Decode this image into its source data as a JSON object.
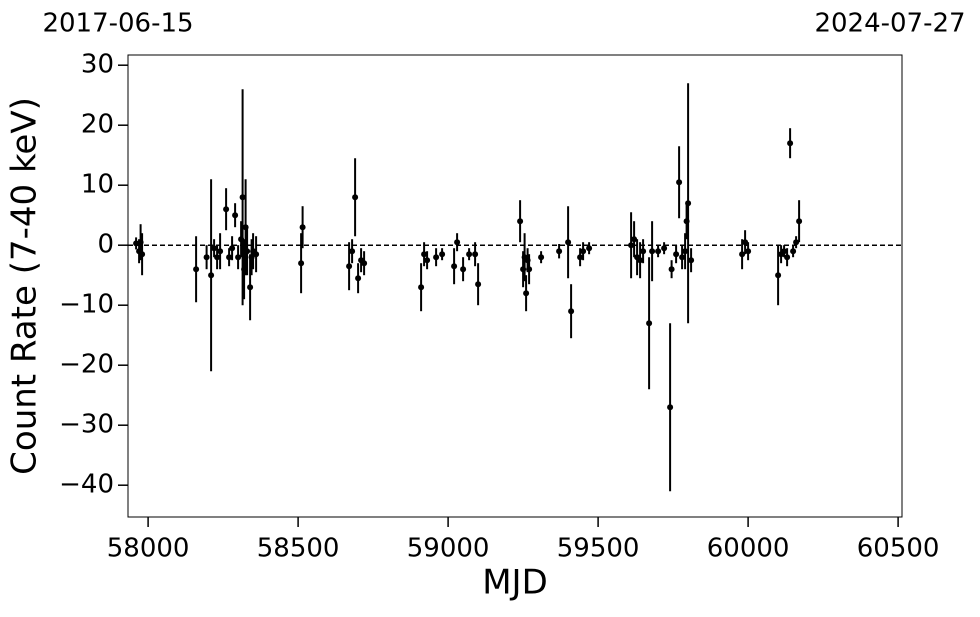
{
  "chart_data": {
    "type": "errorbar",
    "top_labels": [
      "2017-06-15",
      "2024-07-27"
    ],
    "xlabel": "MJD",
    "ylabel": "Count Rate (7-40 keV)",
    "color": "#000000",
    "hline": 0,
    "xlim": [
      57933,
      60513
    ],
    "ylim": [
      -45.3,
      31.7
    ],
    "xticks": [
      58000,
      58500,
      59000,
      59500,
      60000,
      60500
    ],
    "yticks": [
      30,
      20,
      10,
      0,
      {
        "value": -10,
        "label": "−10"
      },
      {
        "value": -20,
        "label": "−20"
      },
      {
        "value": -30,
        "label": "−30"
      },
      {
        "value": -40,
        "label": "−40"
      }
    ],
    "x": [
      57960,
      57970,
      57975,
      57980,
      58160,
      58195,
      58210,
      58220,
      58230,
      58240,
      58260,
      58270,
      58280,
      58290,
      58300,
      58310,
      58315,
      58320,
      58325,
      58330,
      58340,
      58345,
      58350,
      58360,
      58510,
      58515,
      58670,
      58680,
      58690,
      58700,
      58710,
      58720,
      58910,
      58920,
      58930,
      58960,
      58980,
      59020,
      59030,
      59050,
      59070,
      59090,
      59100,
      59240,
      59250,
      59255,
      59260,
      59265,
      59270,
      59310,
      59370,
      59400,
      59410,
      59440,
      59450,
      59470,
      59610,
      59620,
      59630,
      59640,
      59650,
      59670,
      59680,
      59700,
      59720,
      59740,
      59745,
      59760,
      59770,
      59780,
      59790,
      59795,
      59800,
      59810,
      59980,
      59990,
      60000,
      60100,
      60110,
      60120,
      60130,
      60140,
      60150,
      60160,
      60170
    ],
    "values": [
      0.3,
      -1,
      0.5,
      -1.5,
      -4,
      -2,
      -5,
      -0.5,
      -2,
      -1,
      6,
      -2,
      -0.5,
      5,
      -2,
      1,
      8,
      -4,
      3,
      -1,
      -7,
      -2,
      -1,
      -1.5,
      -3,
      3,
      -3.5,
      -1,
      8,
      -5.5,
      -2.5,
      -3,
      -7,
      -1.5,
      -2.5,
      -2,
      -1.5,
      -3.5,
      0.5,
      -4,
      -1.5,
      -1.5,
      -6.5,
      4,
      -4,
      -2,
      -8,
      -2.5,
      -4,
      -2,
      -1,
      0.5,
      -11,
      -2,
      -1,
      -0.5,
      0,
      1,
      -2,
      -2.5,
      -1,
      -13,
      -1,
      -1,
      -0.5,
      -27,
      -4,
      -1.5,
      10.5,
      -2,
      -1,
      4,
      7,
      -2.5,
      -1.5,
      0.5,
      -1,
      -5,
      -1.5,
      -1,
      -2,
      17,
      -1,
      0.5,
      4
    ],
    "errors": [
      1,
      2,
      3,
      3.5,
      5.5,
      2,
      16,
      1.5,
      2,
      3,
      3.5,
      1.5,
      2,
      2,
      2,
      3,
      18,
      5,
      8,
      4,
      5.5,
      3,
      3,
      3,
      5,
      3.5,
      4,
      2,
      6.5,
      2.5,
      2,
      2,
      4,
      2,
      1.5,
      1.5,
      1,
      3,
      1.5,
      2,
      1,
      2,
      3.5,
      3.5,
      3,
      4,
      3,
      2,
      2.5,
      1,
      1.2,
      6,
      4.5,
      1.5,
      1.5,
      1,
      5.5,
      3,
      3,
      3,
      2,
      11,
      5,
      1,
      1,
      14,
      1.5,
      1.5,
      6,
      2,
      3,
      3,
      20,
      2,
      2.5,
      2,
      1.5,
      5,
      1.5,
      1,
      1.5,
      2.5,
      1,
      1,
      3.5
    ]
  }
}
